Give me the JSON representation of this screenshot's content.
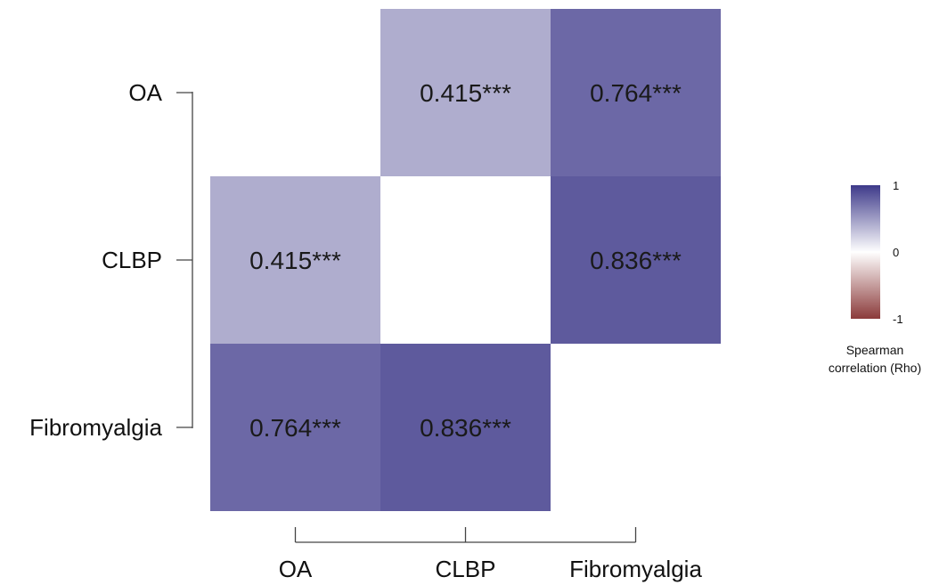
{
  "chart_data": {
    "type": "heatmap",
    "rows": [
      "OA",
      "CLBP",
      "Fibromyalgia"
    ],
    "cols": [
      "OA",
      "CLBP",
      "Fibromyalgia"
    ],
    "values": [
      [
        null,
        0.415,
        0.764
      ],
      [
        0.415,
        null,
        0.836
      ],
      [
        0.764,
        0.836,
        null
      ]
    ],
    "cell_labels": [
      [
        null,
        "0.415***",
        "0.764***"
      ],
      [
        "0.415***",
        null,
        "0.836***"
      ],
      [
        "0.764***",
        "0.836***",
        null
      ]
    ],
    "color_scale": {
      "min": -1,
      "max": 1,
      "ticks": [
        "1",
        "0",
        "-1"
      ],
      "tick_values": [
        1,
        0,
        -1
      ],
      "low_color": "#8b3a3a",
      "mid_color": "#ffffff",
      "high_color": "#3e3a8a",
      "title_lines": [
        "Spearman",
        "correlation (Rho)"
      ]
    }
  }
}
